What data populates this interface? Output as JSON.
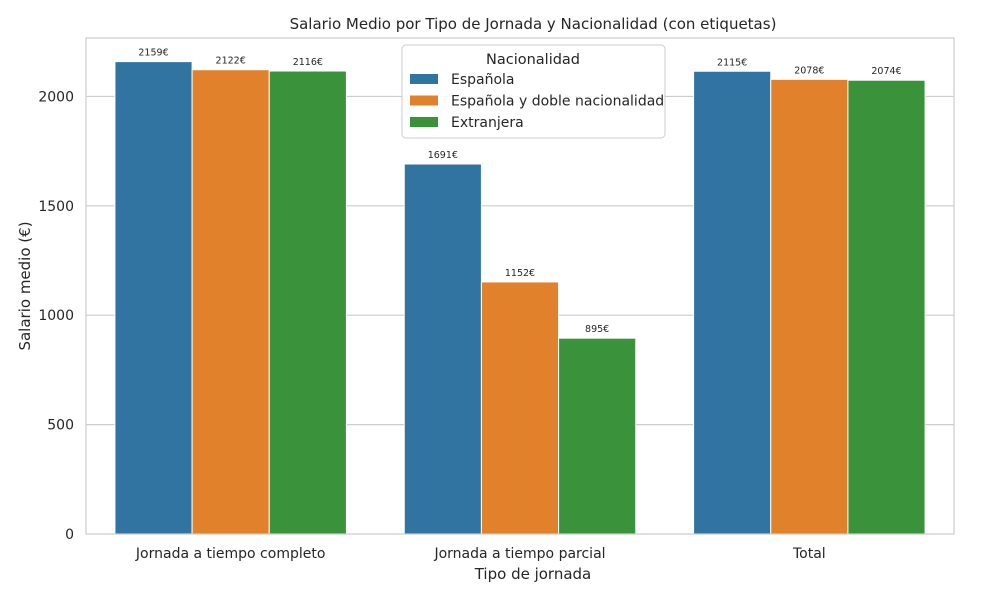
{
  "chart_data": {
    "type": "bar",
    "title": "Salario Medio por Tipo de Jornada y Nacionalidad (con etiquetas)",
    "xlabel": "Tipo de jornada",
    "ylabel": "Salario medio (€)",
    "categories": [
      "Jornada a tiempo completo",
      "Jornada a tiempo parcial",
      "Total"
    ],
    "series": [
      {
        "name": "Española",
        "color": "#3274a1",
        "values": [
          2159,
          1691,
          2115
        ],
        "labels": [
          "2159€",
          "1691€",
          "2115€"
        ]
      },
      {
        "name": "Española y doble nacionalidad",
        "color": "#e1812c",
        "values": [
          2122,
          1152,
          2078
        ],
        "labels": [
          "2122€",
          "1152€",
          "2078€"
        ]
      },
      {
        "name": "Extranjera",
        "color": "#3a923a",
        "values": [
          2116,
          895,
          2074
        ],
        "labels": [
          "2116€",
          "895€",
          "2074€"
        ]
      }
    ],
    "ylim": [
      0,
      2267
    ],
    "yticks": [
      0,
      500,
      1000,
      1500,
      2000
    ],
    "yticks_labels": [
      "0",
      "500",
      "1000",
      "1500",
      "2000"
    ],
    "grid": true,
    "legend": {
      "title": "Nacionalidad",
      "position": "top-center"
    }
  }
}
